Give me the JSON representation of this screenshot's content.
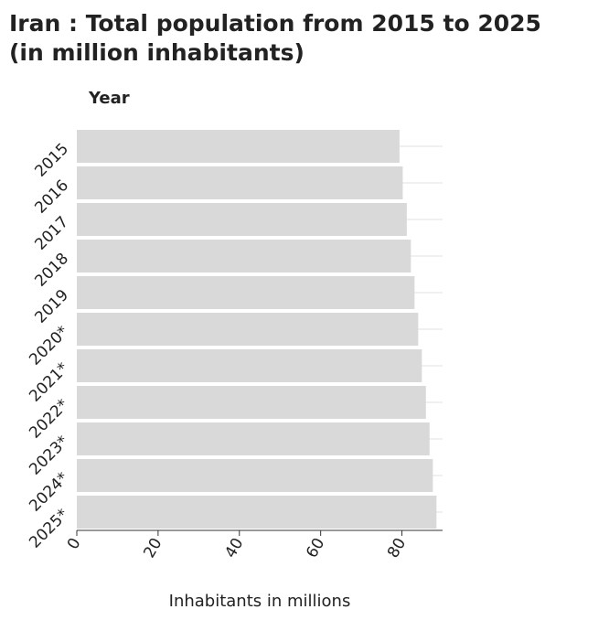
{
  "chart_data": {
    "type": "bar",
    "orientation": "horizontal",
    "title_lines": [
      "Iran : Total population from 2015 to 2025",
      "(in million inhabitants)"
    ],
    "xlabel": "Inhabitants in millions",
    "ylabel": "Year",
    "categories": [
      "2015",
      "2016",
      "2017",
      "2018",
      "2019",
      "2020*",
      "2021*",
      "2022*",
      "2023*",
      "2024*",
      "2025*"
    ],
    "values": [
      79.4,
      80.2,
      81.2,
      82.2,
      83.1,
      84.0,
      84.9,
      85.9,
      86.8,
      87.6,
      88.5
    ],
    "xlim": [
      0,
      90
    ],
    "xticks": [
      0,
      20,
      40,
      60,
      80
    ],
    "grid": "horizontal",
    "bar_color": "#d9d9d9"
  }
}
